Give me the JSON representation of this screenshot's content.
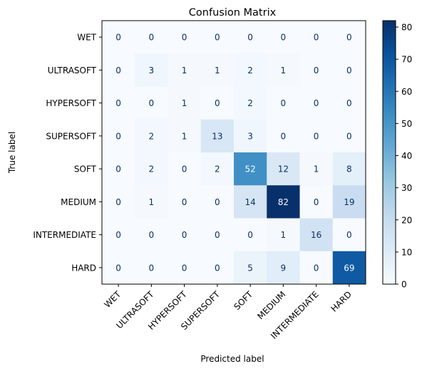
{
  "chart_data": {
    "type": "heatmap",
    "title": "Confusion Matrix",
    "xlabel": "Predicted label",
    "ylabel": "True label",
    "labels": [
      "WET",
      "ULTRASOFT",
      "HYPERSOFT",
      "SUPERSOFT",
      "SOFT",
      "MEDIUM",
      "INTERMEDIATE",
      "HARD"
    ],
    "matrix": [
      [
        0,
        0,
        0,
        0,
        0,
        0,
        0,
        0
      ],
      [
        0,
        3,
        1,
        1,
        2,
        1,
        0,
        0
      ],
      [
        0,
        0,
        1,
        0,
        2,
        0,
        0,
        0
      ],
      [
        0,
        2,
        1,
        13,
        3,
        0,
        0,
        0
      ],
      [
        0,
        2,
        0,
        2,
        52,
        12,
        1,
        8
      ],
      [
        0,
        1,
        0,
        0,
        14,
        82,
        0,
        19
      ],
      [
        0,
        0,
        0,
        0,
        0,
        1,
        16,
        0
      ],
      [
        0,
        0,
        0,
        0,
        5,
        9,
        0,
        69
      ]
    ],
    "colorbar": {
      "colormap": "Blues",
      "min": 0,
      "max": 82,
      "ticks": [
        0,
        10,
        20,
        30,
        40,
        50,
        60,
        70,
        80
      ]
    }
  }
}
